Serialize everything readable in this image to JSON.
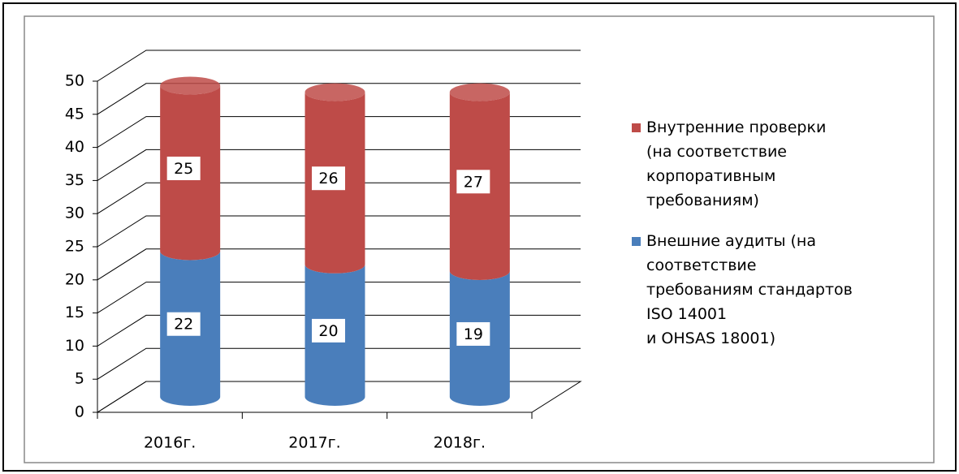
{
  "chart_data": {
    "type": "bar3d_stacked",
    "categories": [
      "2016г.",
      "2017г.",
      "2018г."
    ],
    "series": [
      {
        "name": "Внешние аудиты (на\nсоответствие\nтребованиям стандартов\nISO 14001\nи OHSAS 18001)",
        "color": "#4a7ebb",
        "values": [
          22,
          20,
          19
        ]
      },
      {
        "name": "Внутренние проверки\n(на соответствие\nкорпоративным\nтребованиям)",
        "color": "#be4b48",
        "values": [
          25,
          26,
          27
        ]
      }
    ],
    "ylim": [
      0,
      50
    ],
    "yticks": [
      0,
      5,
      10,
      15,
      20,
      25,
      30,
      35,
      40,
      45,
      50
    ],
    "grid": true,
    "legend": "right"
  }
}
